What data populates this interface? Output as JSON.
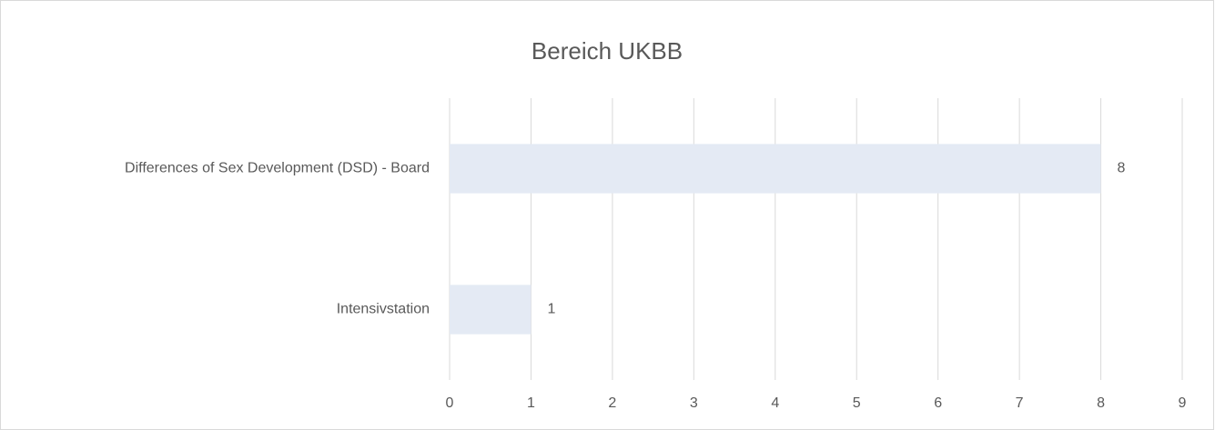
{
  "chart_data": {
    "type": "hbar",
    "title": "Bereich UKBB",
    "categories": [
      "Differences of Sex Development (DSD) - Board",
      "Intensivstation"
    ],
    "values": [
      8,
      1
    ],
    "color": "#e4eaf4",
    "show_value_labels": true,
    "xlim": [
      0,
      9
    ],
    "xticks": [
      0,
      1,
      2,
      3,
      4,
      5,
      6,
      7,
      8,
      9
    ],
    "grid": true
  }
}
